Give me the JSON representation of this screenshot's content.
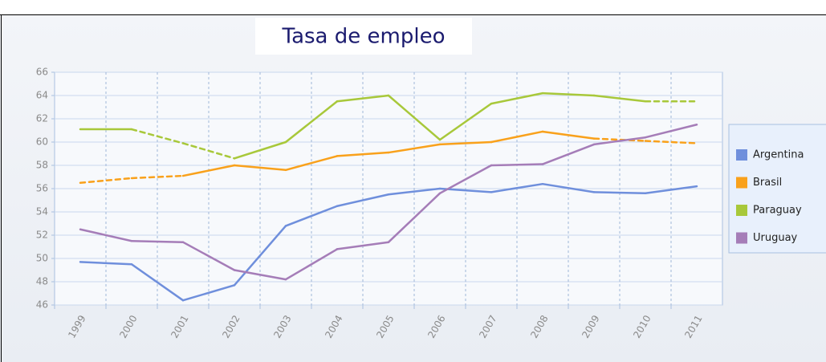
{
  "chart_data": {
    "type": "line",
    "title": "Tasa de empleo",
    "categories": [
      "1999",
      "2000",
      "2001",
      "2002",
      "2003",
      "2004",
      "2005",
      "2006",
      "2007",
      "2008",
      "2009",
      "2010",
      "2011"
    ],
    "series": [
      {
        "name": "Argentina",
        "color": "#6f8fdc",
        "values": [
          49.7,
          49.5,
          46.4,
          47.7,
          52.8,
          54.5,
          55.5,
          56.0,
          55.7,
          56.4,
          55.7,
          55.6,
          56.2
        ],
        "dashed_segments": []
      },
      {
        "name": "Brasil",
        "color": "#f9a11b",
        "values": [
          56.5,
          56.9,
          57.1,
          58.0,
          57.6,
          58.8,
          59.1,
          59.8,
          60.0,
          60.9,
          60.3,
          60.1,
          59.9
        ],
        "dashed_segments": [
          0,
          1,
          10,
          11
        ]
      },
      {
        "name": "Paraguay",
        "color": "#a8c83a",
        "values": [
          61.1,
          61.1,
          59.9,
          58.6,
          60.0,
          63.5,
          64.0,
          60.2,
          63.3,
          64.2,
          64.0,
          63.5,
          63.5
        ],
        "dashed_segments": [
          1,
          2,
          11
        ]
      },
      {
        "name": "Uruguay",
        "color": "#a57db8",
        "values": [
          52.5,
          51.5,
          51.4,
          49.0,
          48.2,
          50.8,
          51.4,
          55.6,
          58.0,
          58.1,
          59.8,
          60.4,
          61.5
        ],
        "dashed_segments": []
      }
    ],
    "ylim": [
      46,
      66
    ],
    "yticks": [
      46,
      48,
      50,
      52,
      54,
      56,
      58,
      60,
      62,
      64,
      66
    ],
    "grid": true,
    "legend": "right"
  }
}
